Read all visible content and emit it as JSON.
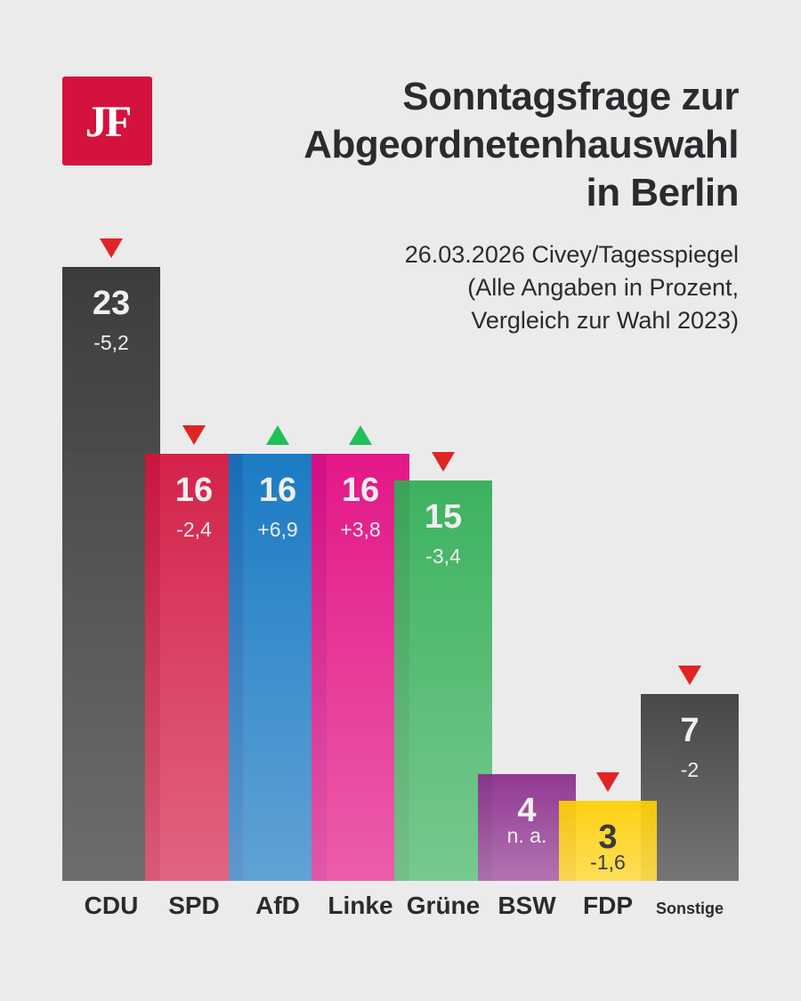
{
  "logo": "JF",
  "header": {
    "title_lines": [
      "Sonntagsfrage zur",
      "Abgeordnetenhauswahl",
      "in Berlin"
    ],
    "subtitle_lines": [
      "26.03.2026 Civey/Tagesspiegel",
      "(Alle Angaben in Prozent,",
      "Vergleich zur Wahl 2023)"
    ]
  },
  "chart_data": {
    "type": "bar",
    "title": "Sonntagsfrage zur Abgeordnetenhauswahl in Berlin",
    "categories": [
      "CDU",
      "SPD",
      "AfD",
      "Linke",
      "Grüne",
      "BSW",
      "FDP",
      "Sonstige"
    ],
    "values": [
      23,
      16,
      16,
      16,
      15,
      4,
      3,
      7
    ],
    "value_labels": [
      "23",
      "16",
      "16",
      "16",
      "15",
      "4",
      "3",
      "7"
    ],
    "changes": [
      "-5,2",
      "-2,4",
      "+6,9",
      "+3,8",
      "-3,4",
      "n. a.",
      "-1,6",
      "-2"
    ],
    "trend": [
      "down",
      "down",
      "up",
      "up",
      "down",
      "none",
      "down",
      "down"
    ],
    "colors": [
      "#2e2e2e",
      "#d3123d",
      "#0a72c0",
      "#e3067f",
      "#2fae54",
      "#8a2a8a",
      "#ffd000",
      "#3a3a3a"
    ],
    "ylim": [
      0,
      23
    ],
    "xlabel": "",
    "ylabel": "Prozent"
  }
}
